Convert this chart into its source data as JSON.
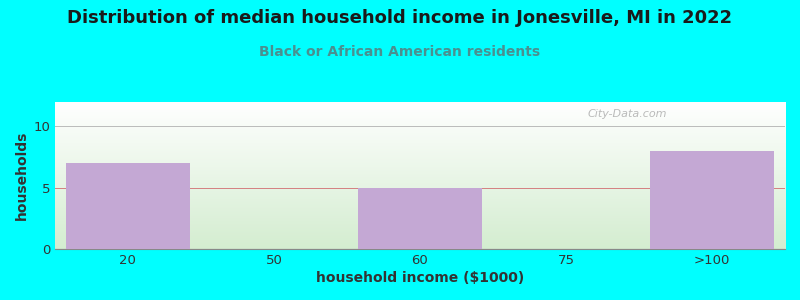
{
  "title": "Distribution of median household income in Jonesville, MI in 2022",
  "subtitle": "Black or African American residents",
  "xlabel": "household income ($1000)",
  "ylabel": "households",
  "bar_categories": [
    "20",
    "50",
    "60",
    "75",
    ">100"
  ],
  "bar_values": [
    7,
    0,
    5,
    0,
    8
  ],
  "bar_color": "#C4A8D4",
  "bar_edgecolor": "#C4A8D4",
  "background_color": "#00FFFF",
  "plot_bg_top": "#FFFFFF",
  "plot_bg_bottom": "#D4EDD0",
  "ylim": [
    0,
    12
  ],
  "yticks": [
    0,
    5,
    10
  ],
  "grid_colors": {
    "0": "#aaaaaa",
    "5": "#e8a0a0",
    "10": "#cccccc"
  },
  "title_fontsize": 13,
  "subtitle_fontsize": 10,
  "axis_label_fontsize": 10,
  "title_color": "#1a1a1a",
  "subtitle_color": "#4a9090",
  "watermark": "City-Data.com"
}
